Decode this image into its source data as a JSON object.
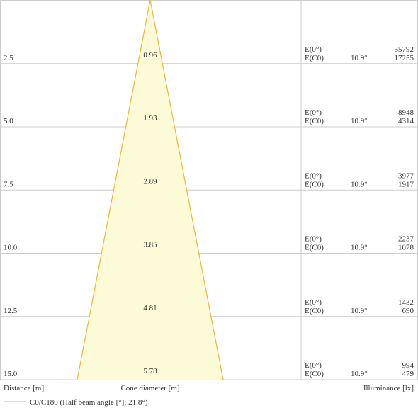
{
  "chart_data": {
    "type": "cone-diagram",
    "title": "",
    "xlabel": "Distance [m]",
    "center_label": "Cone diameter [m]",
    "right_label": "Illuminance [lx]",
    "legend": {
      "label": "C0/C180 (Half beam angle [°]: 21.8°)",
      "placement": "bottom-left",
      "color": "#f2b43a"
    },
    "rows": [
      {
        "distance": "2.5",
        "diameter": "0.96",
        "e0_label": "E(0°)",
        "ec0_label": "E(C0)",
        "angle": "10.9°",
        "e0": "35792",
        "ec0": "17255"
      },
      {
        "distance": "5.0",
        "diameter": "1.93",
        "e0_label": "E(0°)",
        "ec0_label": "E(C0)",
        "angle": "10.9°",
        "e0": "8948",
        "ec0": "4314"
      },
      {
        "distance": "7.5",
        "diameter": "2.89",
        "e0_label": "E(0°)",
        "ec0_label": "E(C0)",
        "angle": "10.9°",
        "e0": "3977",
        "ec0": "1917"
      },
      {
        "distance": "10.0",
        "diameter": "3.85",
        "e0_label": "E(0°)",
        "ec0_label": "E(C0)",
        "angle": "10.9°",
        "e0": "2237",
        "ec0": "1078"
      },
      {
        "distance": "12.5",
        "diameter": "4.81",
        "e0_label": "E(0°)",
        "ec0_label": "E(C0)",
        "angle": "10.9°",
        "e0": "1432",
        "ec0": "690"
      },
      {
        "distance": "15.0",
        "diameter": "5.78",
        "e0_label": "E(0°)",
        "ec0_label": "E(C0)",
        "angle": "10.9°",
        "e0": "994",
        "ec0": "479"
      }
    ],
    "colors": {
      "cone_fill": "#fdfbd7",
      "cone_stroke": "#f2b43a",
      "grid": "#cccccc",
      "text": "#333333"
    }
  }
}
